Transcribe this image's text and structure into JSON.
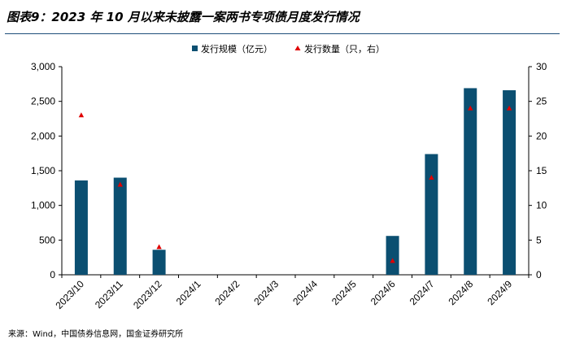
{
  "title": "图表9：2023 年 10 月以来未披露一案两书专项债月度发行情况",
  "source": "来源：Wind，中国债券信息网，国金证券研究所",
  "colors": {
    "bar": "#0b4f71",
    "marker": "#e00000",
    "axis": "#000000",
    "rule": "#1f4e79"
  },
  "chart_data": {
    "type": "bar",
    "categories": [
      "2023/10",
      "2023/11",
      "2023/12",
      "2024/1",
      "2024/2",
      "2024/3",
      "2024/4",
      "2024/5",
      "2024/6",
      "2024/7",
      "2024/8",
      "2024/9"
    ],
    "series": [
      {
        "name": "发行规模（亿元）",
        "type": "bar",
        "axis": "left",
        "values": [
          1360,
          1400,
          360,
          0,
          0,
          0,
          0,
          0,
          560,
          1740,
          2690,
          2660
        ]
      },
      {
        "name": "发行数量（只，右）",
        "type": "scatter",
        "marker": "triangle",
        "axis": "right",
        "values": [
          23,
          13,
          4,
          null,
          null,
          null,
          null,
          null,
          2,
          14,
          24,
          24
        ]
      }
    ],
    "ylim": [
      0,
      3000
    ],
    "yticks": [
      "0",
      "500",
      "1,000",
      "1,500",
      "2,000",
      "2,500",
      "3,000"
    ],
    "y2lim": [
      0,
      30
    ],
    "y2ticks": [
      "0",
      "5",
      "10",
      "15",
      "20",
      "25",
      "30"
    ],
    "legend_position": "top-center",
    "grid": false
  }
}
